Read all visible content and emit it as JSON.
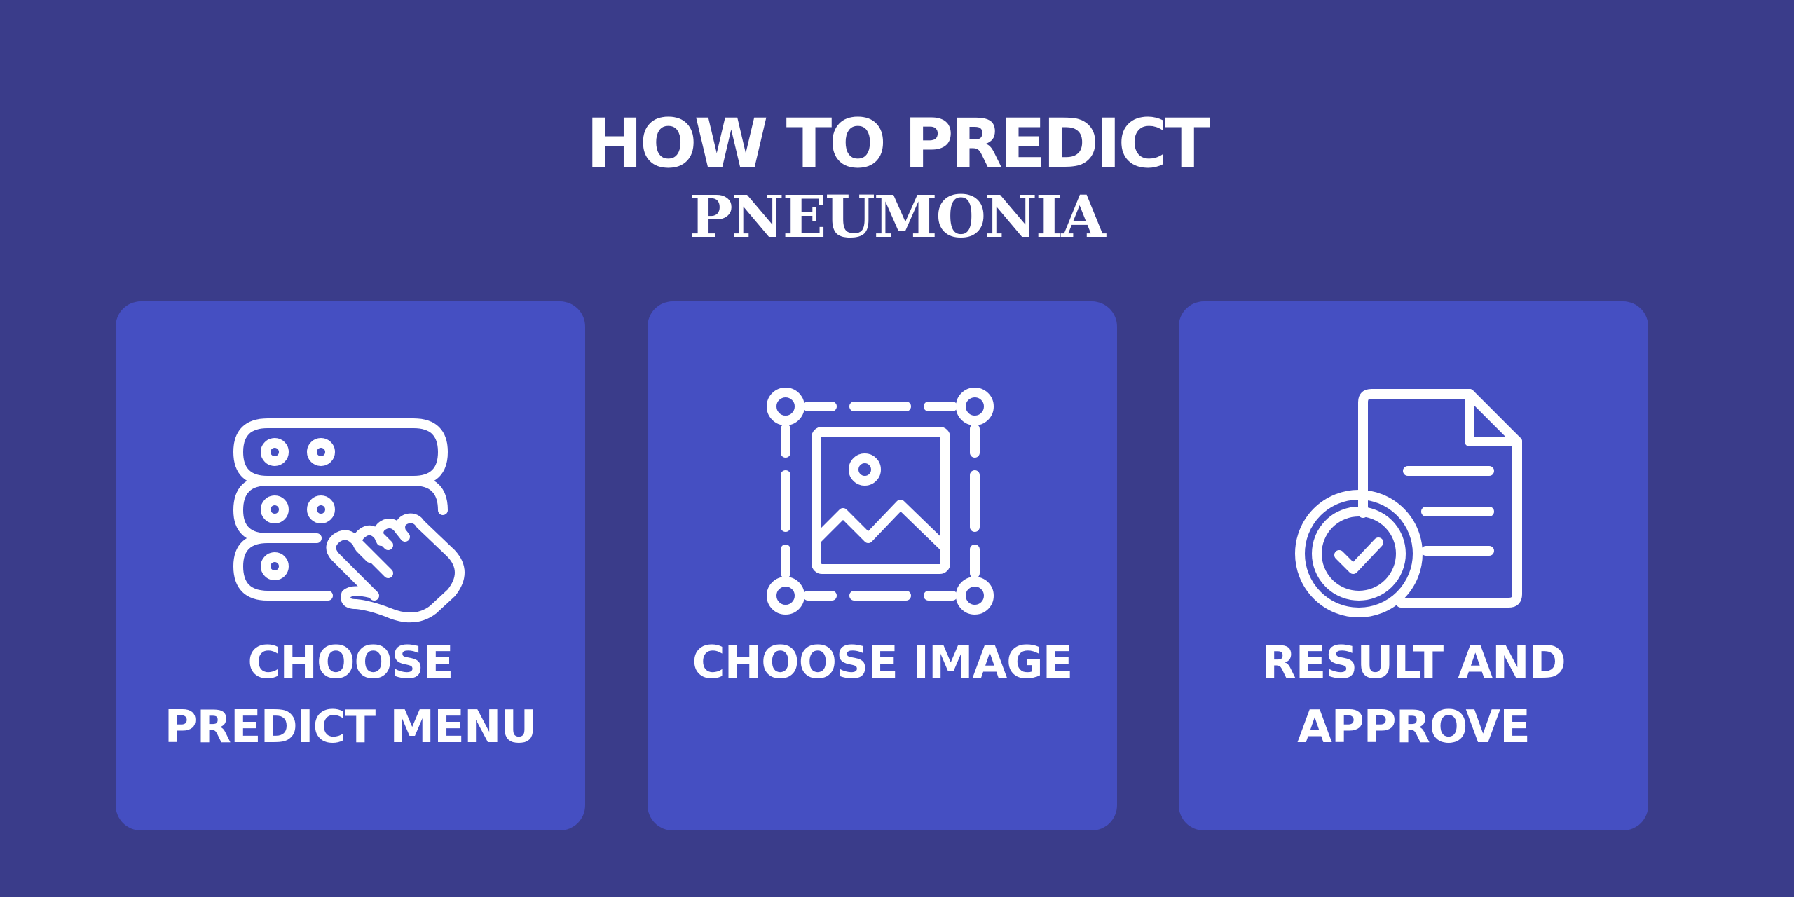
{
  "header": {
    "title": "HOW TO PREDICT",
    "subtitle": "PNEUMONIA"
  },
  "steps": [
    {
      "icon": "server-touch-icon",
      "label_line1": "CHOOSE",
      "label_line2": "PREDICT MENU"
    },
    {
      "icon": "image-select-icon",
      "label_line1": "CHOOSE IMAGE",
      "label_line2": ""
    },
    {
      "icon": "document-check-icon",
      "label_line1": "RESULT AND",
      "label_line2": "APPROVE"
    }
  ],
  "colors": {
    "background": "#3A3C8A",
    "card": "#454FC2",
    "text": "#FFFFFF"
  }
}
